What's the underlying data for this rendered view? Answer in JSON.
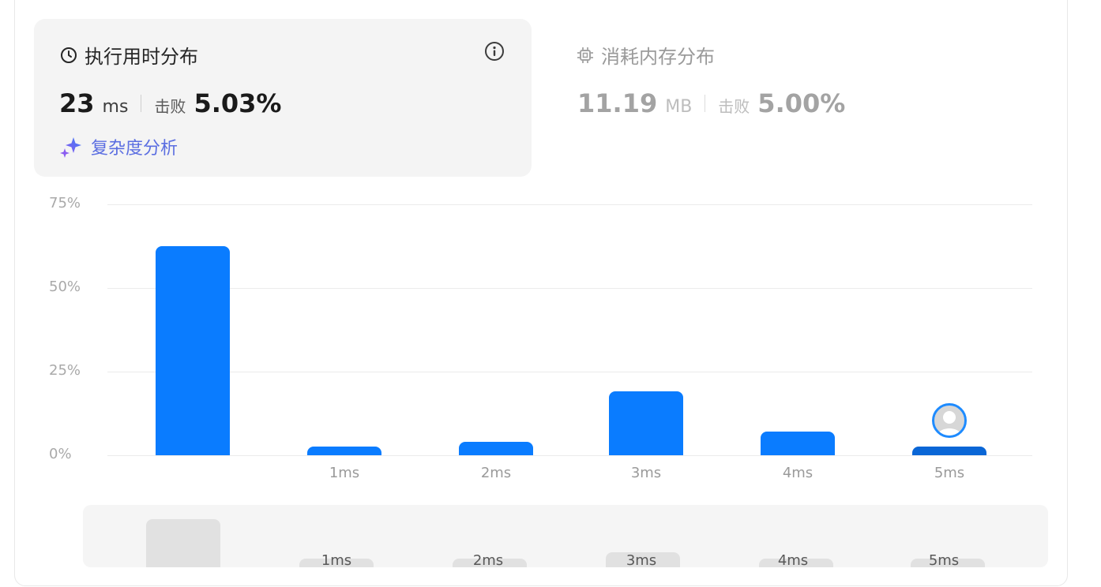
{
  "runtime_tab": {
    "title": "执行用时分布",
    "value": "23",
    "unit": "ms",
    "beat_label": "击败",
    "beat_percent": "5.03%",
    "analysis_label": "复杂度分析",
    "icon": "clock-icon",
    "info_icon": "info-icon"
  },
  "memory_tab": {
    "title": "消耗内存分布",
    "value": "11.19",
    "unit": "MB",
    "beat_label": "击败",
    "beat_percent": "5.00%",
    "icon": "chip-icon"
  },
  "colors": {
    "bar": "#0a7cff",
    "user_bar": "#0a66d6",
    "accent_link": "#5b6ee1"
  },
  "chart_data": {
    "type": "bar",
    "categories": [
      "",
      "1ms",
      "2ms",
      "3ms",
      "4ms",
      "5ms"
    ],
    "values": [
      62.5,
      2.5,
      4.0,
      19.0,
      7.0,
      2.5
    ],
    "yticks": [
      "75%",
      "50%",
      "25%",
      "0%"
    ],
    "ylim": [
      0,
      75
    ],
    "grid": true,
    "user_bucket": "5ms"
  },
  "brush": {
    "labels": [
      "1ms",
      "2ms",
      "3ms",
      "4ms",
      "5ms"
    ]
  }
}
